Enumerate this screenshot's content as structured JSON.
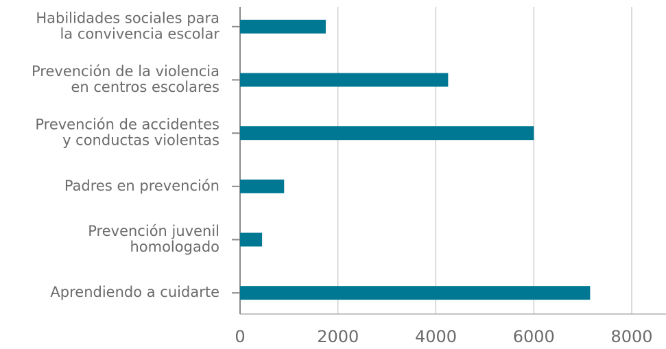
{
  "chart_data": {
    "type": "barh",
    "categories": [
      [
        "Habilidades sociales para",
        "la convivencia escolar"
      ],
      [
        "Prevención de la violencia",
        "en centros escolares"
      ],
      [
        "Prevención de accidentes",
        "y conductas violentas"
      ],
      [
        "Padres en prevención"
      ],
      [
        "Prevención juvenil",
        "homologado"
      ],
      [
        "Aprendiendo a cuidarte"
      ]
    ],
    "values": [
      1750,
      4250,
      6000,
      900,
      450,
      7150
    ],
    "color": "#007893",
    "xlim": [
      0,
      8700
    ],
    "xticks": [
      0,
      2000,
      4000,
      6000,
      8000
    ],
    "grid": true
  }
}
